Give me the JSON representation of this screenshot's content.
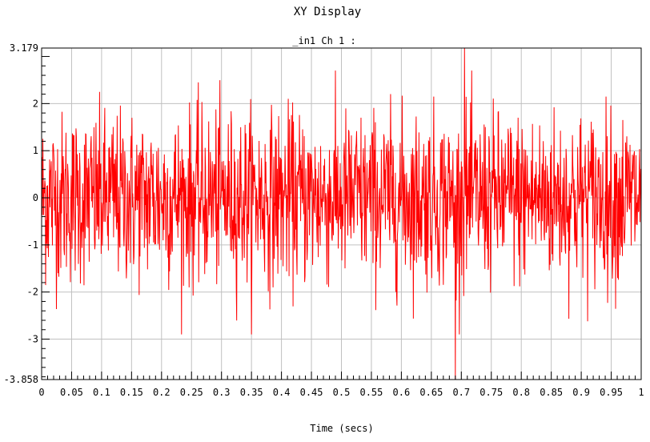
{
  "window": {
    "title": "XY Display"
  },
  "chart_data": {
    "type": "line",
    "title": "XY Display",
    "subtitle": "_in1  Ch 1 :",
    "xlabel": "Time (secs)",
    "ylabel": "",
    "xlim": [
      0,
      1
    ],
    "ylim": [
      -3.858,
      3.179
    ],
    "grid": true,
    "x_tick_labels": [
      "0",
      "0.05",
      "0.1",
      "0.15",
      "0.2",
      "0.25",
      "0.3",
      "0.35",
      "0.4",
      "0.45",
      "0.5",
      "0.55",
      "0.6",
      "0.65",
      "0.7",
      "0.75",
      "0.8",
      "0.85",
      "0.9",
      "0.95",
      "1"
    ],
    "y_tick_labels": [
      "3.179",
      "2",
      "1",
      "0",
      "-1",
      "-2",
      "-3",
      "-3.858"
    ],
    "series": [
      {
        "color": "#ff0000",
        "description_values": {
          "x_start": 0,
          "x_end": 1,
          "approx_mean": 0.0,
          "approx_std": 0.9,
          "max": 3.179,
          "max_at_x": 0.705,
          "min": -3.858,
          "min_at_x": 0.69
        }
      }
    ]
  },
  "colors": {
    "series": "#ff0000",
    "grid": "#c0c0c0",
    "axis": "#000000",
    "background": "#ffffff"
  }
}
